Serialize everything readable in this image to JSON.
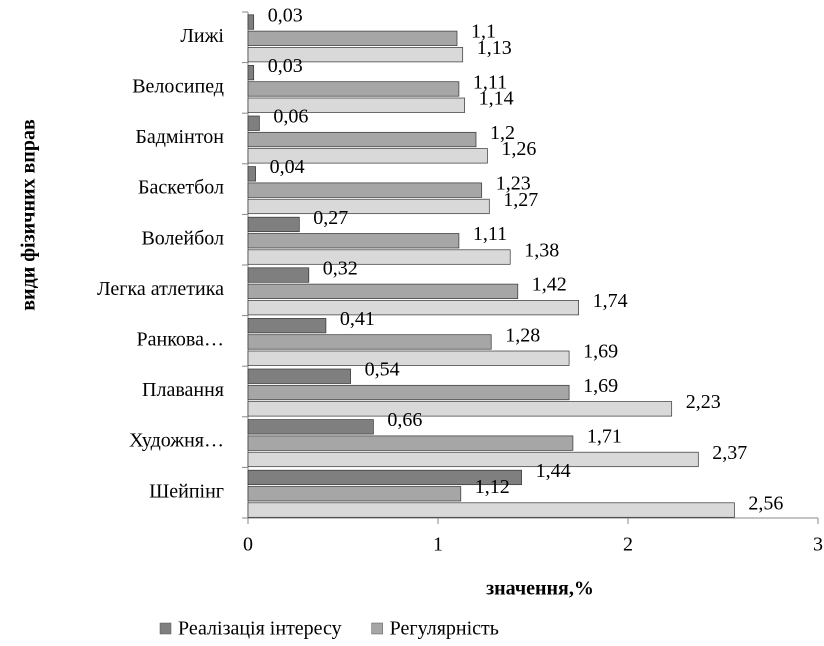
{
  "chart_data": {
    "type": "hbar",
    "xlabel": "значення,%",
    "ylabel": "види фізичних вправ",
    "categories": [
      "Лижі",
      "Велосипед",
      "Бадмінтон",
      "Баскетбол",
      "Волейбол",
      "Легка атлетика",
      "Ранкова…",
      "Плавання",
      "Художня…",
      "Шейпінг"
    ],
    "series": [
      {
        "name": "Реалізація інтересу",
        "color": "#7f7f7f",
        "values": [
          0.03,
          0.03,
          0.06,
          0.04,
          0.27,
          0.32,
          0.41,
          0.54,
          0.66,
          1.44
        ],
        "value_labels": [
          "0,03",
          "0,03",
          "0,06",
          "0,04",
          "0,27",
          "0,32",
          "0,41",
          "0,54",
          "0,66",
          "1,44"
        ]
      },
      {
        "name": "Регулярність",
        "color": "#a6a6a6",
        "values": [
          1.1,
          1.11,
          1.2,
          1.23,
          1.11,
          1.42,
          1.28,
          1.69,
          1.71,
          1.12
        ],
        "value_labels": [
          "1,1",
          "1,11",
          "1,2",
          "1,23",
          "1,11",
          "1,42",
          "1,28",
          "1,69",
          "1,71",
          "1,12"
        ]
      },
      {
        "color": "#d9d9d9",
        "values": [
          1.13,
          1.14,
          1.26,
          1.27,
          1.38,
          1.74,
          1.69,
          2.23,
          2.37,
          2.56
        ],
        "value_labels": [
          "1,13",
          "1,14",
          "1,26",
          "1,27",
          "1,38",
          "1,74",
          "1,69",
          "2,23",
          "2,37",
          "2,56"
        ]
      }
    ],
    "xlim": [
      0,
      3
    ],
    "xticks": [
      0,
      1,
      2,
      3
    ],
    "legend": "bottom"
  }
}
